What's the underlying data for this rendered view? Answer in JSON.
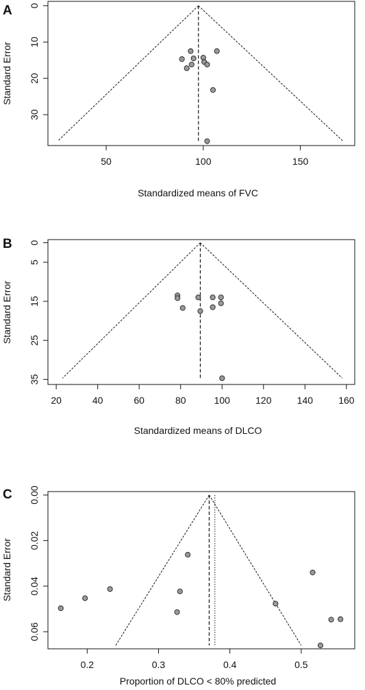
{
  "figure": {
    "panels": [
      {
        "letter": "A"
      },
      {
        "letter": "B"
      },
      {
        "letter": "C"
      }
    ]
  },
  "chart_data": [
    {
      "type": "scatter",
      "title": "",
      "xlabel": "Standardized means of FVC",
      "ylabel": "Standard Error",
      "xlim": [
        20,
        178
      ],
      "ylim": [
        38.5,
        -1.2
      ],
      "y_reversed": true,
      "xticks": [
        50,
        100,
        150
      ],
      "yticks": [
        0,
        10,
        20,
        30
      ],
      "grid": false,
      "points": [
        {
          "x": 93.5,
          "y": 12.5
        },
        {
          "x": 107,
          "y": 12.5
        },
        {
          "x": 100,
          "y": 14.3
        },
        {
          "x": 89,
          "y": 14.7
        },
        {
          "x": 95,
          "y": 14.5
        },
        {
          "x": 100.5,
          "y": 15.5
        },
        {
          "x": 94,
          "y": 16.2
        },
        {
          "x": 102,
          "y": 16.2
        },
        {
          "x": 91.5,
          "y": 17.2
        },
        {
          "x": 105,
          "y": 23.2
        },
        {
          "x": 102,
          "y": 37.3
        }
      ],
      "summary_line": {
        "x": 97.5,
        "y_top": 0,
        "y_bottom": 37.3
      },
      "funnel": {
        "apex": [
          97.5,
          0
        ],
        "left_base": [
          25,
          37.3
        ],
        "right_base": [
          172,
          37.3
        ]
      }
    },
    {
      "type": "scatter",
      "title": "",
      "xlabel": "Standardized means of DLCO",
      "ylabel": "Standard Error",
      "xlim": [
        16,
        164
      ],
      "ylim": [
        36.3,
        -0.8
      ],
      "y_reversed": true,
      "xticks": [
        20,
        40,
        60,
        80,
        100,
        120,
        140,
        160
      ],
      "yticks": [
        0,
        5,
        15,
        25,
        35
      ],
      "grid": false,
      "points": [
        {
          "x": 78.5,
          "y": 13.5
        },
        {
          "x": 78.5,
          "y": 14.2
        },
        {
          "x": 88.5,
          "y": 14.0
        },
        {
          "x": 95.5,
          "y": 14.0
        },
        {
          "x": 99.5,
          "y": 14.0
        },
        {
          "x": 99.5,
          "y": 15.5
        },
        {
          "x": 95.5,
          "y": 16.5
        },
        {
          "x": 81,
          "y": 16.7
        },
        {
          "x": 89.5,
          "y": 17.5
        },
        {
          "x": 100,
          "y": 34.7
        }
      ],
      "summary_line": {
        "x": 89.5,
        "y_top": 0,
        "y_bottom": 34.7
      },
      "funnel": {
        "apex": [
          89.5,
          0
        ],
        "left_base": [
          23,
          34.7
        ],
        "right_base": [
          158,
          34.7
        ]
      }
    },
    {
      "type": "scatter",
      "title": "",
      "xlabel": "Proportion of DLCO < 80% predicted",
      "ylabel": "Standard Error",
      "xlim": [
        0.145,
        0.575
      ],
      "ylim": [
        0.0675,
        -0.0015
      ],
      "y_reversed": true,
      "xticks": [
        0.2,
        0.3,
        0.4,
        0.5
      ],
      "xtick_labels": [
        "0.2",
        "0.3",
        "0.4",
        "0.5"
      ],
      "yticks": [
        0.0,
        0.02,
        0.04,
        0.06
      ],
      "ytick_labels": [
        "0.00",
        "0.02",
        "0.04",
        "0.06"
      ],
      "grid": false,
      "points": [
        {
          "x": 0.341,
          "y": 0.0262
        },
        {
          "x": 0.516,
          "y": 0.034
        },
        {
          "x": 0.232,
          "y": 0.0413
        },
        {
          "x": 0.33,
          "y": 0.0423
        },
        {
          "x": 0.197,
          "y": 0.0453
        },
        {
          "x": 0.464,
          "y": 0.0477
        },
        {
          "x": 0.163,
          "y": 0.0497
        },
        {
          "x": 0.326,
          "y": 0.0514
        },
        {
          "x": 0.542,
          "y": 0.0547
        },
        {
          "x": 0.555,
          "y": 0.0545
        },
        {
          "x": 0.527,
          "y": 0.066
        }
      ],
      "summary_line": {
        "x": 0.371,
        "y_top": 0,
        "y_bottom": 0.066,
        "style": "dashed"
      },
      "reference_line": {
        "x": 0.379,
        "y_top": 0,
        "y_bottom": 0.066,
        "style": "dotted"
      },
      "funnel": {
        "apex": [
          0.371,
          0
        ],
        "left_base": [
          0.24,
          0.066
        ],
        "right_base": [
          0.5,
          0.066
        ]
      }
    }
  ]
}
